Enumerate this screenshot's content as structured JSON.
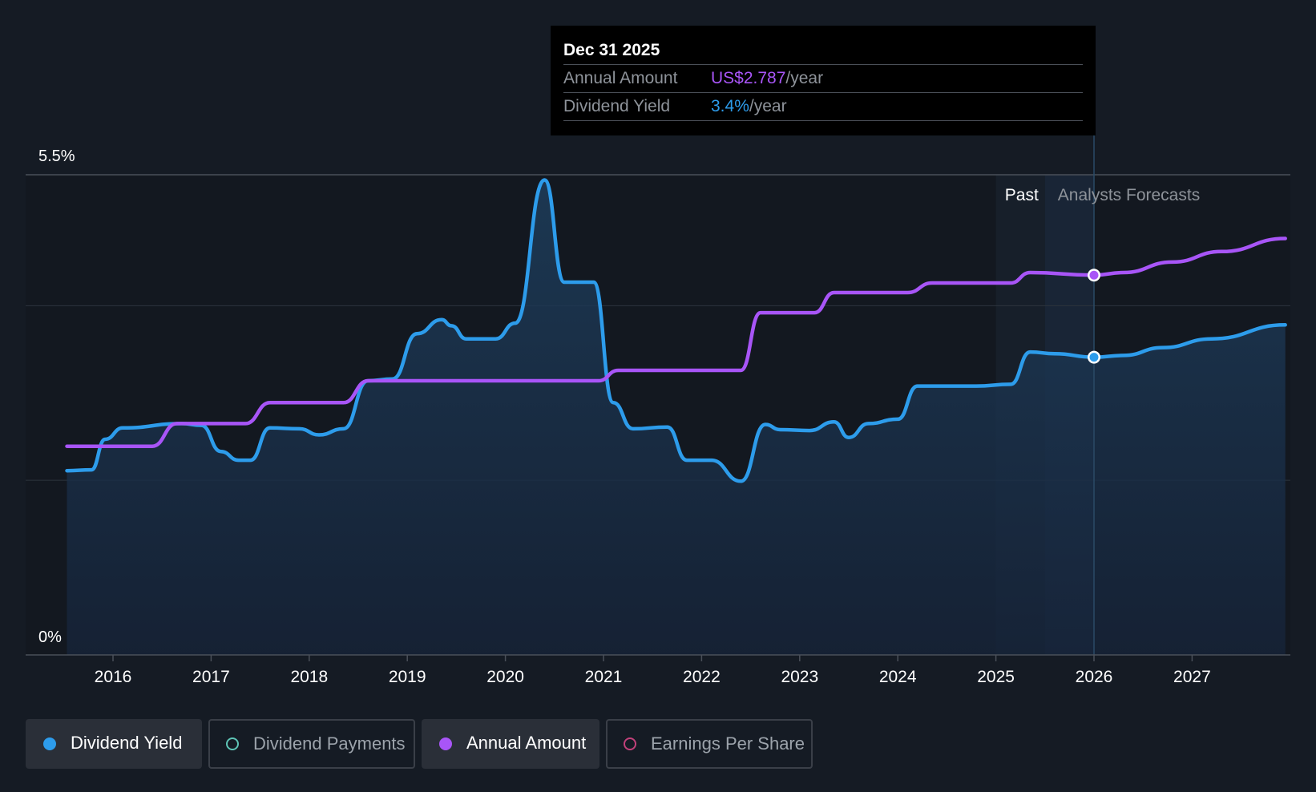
{
  "tooltip": {
    "date": "Dec 31 2025",
    "annual_label": "Annual Amount",
    "annual_value": "US$2.787",
    "annual_unit": "/year",
    "yield_label": "Dividend Yield",
    "yield_value": "3.4%",
    "yield_unit": "/year"
  },
  "legend": [
    {
      "label": "Dividend Yield",
      "color": "#2d9ceb",
      "active": true
    },
    {
      "label": "Dividend Payments",
      "color": "#5ec4b6",
      "active": false
    },
    {
      "label": "Annual Amount",
      "color": "#a855f7",
      "active": true
    },
    {
      "label": "Earnings Per Share",
      "color": "#c2417a",
      "active": false
    }
  ],
  "chart_data": {
    "type": "line",
    "y_top_label": "5.5%",
    "y_bottom_label": "0%",
    "ylim": [
      0,
      5.5
    ],
    "xlim": [
      2015.0,
      2027.95
    ],
    "x_ticks": [
      "2016",
      "2017",
      "2018",
      "2019",
      "2020",
      "2021",
      "2022",
      "2023",
      "2024",
      "2025",
      "2026",
      "2027"
    ],
    "regions": {
      "past_label": "Past",
      "forecast_label": "Analysts Forecasts",
      "past_start": 2025.0,
      "forecast_start": 2025.5,
      "cursor": 2026.0
    },
    "gridlines": [
      5.5,
      4.0,
      2.0
    ],
    "series": [
      {
        "name": "Dividend Yield",
        "color": "#2d9ceb",
        "area": true,
        "points": [
          [
            2015.53,
            2.11
          ],
          [
            2015.78,
            2.12
          ],
          [
            2015.92,
            2.47
          ],
          [
            2016.1,
            2.6
          ],
          [
            2016.7,
            2.65
          ],
          [
            2016.9,
            2.63
          ],
          [
            2017.1,
            2.33
          ],
          [
            2017.28,
            2.23
          ],
          [
            2017.4,
            2.23
          ],
          [
            2017.6,
            2.6
          ],
          [
            2017.9,
            2.59
          ],
          [
            2018.1,
            2.52
          ],
          [
            2018.35,
            2.59
          ],
          [
            2018.6,
            3.14
          ],
          [
            2018.85,
            3.16
          ],
          [
            2019.1,
            3.68
          ],
          [
            2019.35,
            3.84
          ],
          [
            2019.45,
            3.77
          ],
          [
            2019.6,
            3.62
          ],
          [
            2019.9,
            3.62
          ],
          [
            2020.1,
            3.8
          ],
          [
            2020.4,
            5.44
          ],
          [
            2020.6,
            4.27
          ],
          [
            2020.9,
            4.27
          ],
          [
            2021.1,
            2.89
          ],
          [
            2021.3,
            2.59
          ],
          [
            2021.65,
            2.61
          ],
          [
            2021.85,
            2.23
          ],
          [
            2022.1,
            2.23
          ],
          [
            2022.4,
            1.99
          ],
          [
            2022.65,
            2.64
          ],
          [
            2022.8,
            2.58
          ],
          [
            2023.1,
            2.57
          ],
          [
            2023.35,
            2.67
          ],
          [
            2023.5,
            2.49
          ],
          [
            2023.7,
            2.65
          ],
          [
            2024.0,
            2.7
          ],
          [
            2024.2,
            3.08
          ],
          [
            2024.8,
            3.08
          ],
          [
            2025.15,
            3.1
          ],
          [
            2025.35,
            3.47
          ],
          [
            2025.6,
            3.45
          ],
          [
            2026.0,
            3.41
          ],
          [
            2026.3,
            3.43
          ],
          [
            2026.7,
            3.52
          ],
          [
            2027.2,
            3.62
          ],
          [
            2027.95,
            3.78
          ]
        ]
      },
      {
        "name": "Annual Amount",
        "color": "#a855f7",
        "area": false,
        "points": [
          [
            2015.53,
            2.39
          ],
          [
            2015.95,
            2.39
          ],
          [
            2016.4,
            2.39
          ],
          [
            2016.65,
            2.65
          ],
          [
            2017.35,
            2.65
          ],
          [
            2017.6,
            2.89
          ],
          [
            2018.35,
            2.89
          ],
          [
            2018.6,
            3.14
          ],
          [
            2020.95,
            3.14
          ],
          [
            2021.15,
            3.26
          ],
          [
            2022.4,
            3.26
          ],
          [
            2022.6,
            3.92
          ],
          [
            2023.15,
            3.92
          ],
          [
            2023.35,
            4.15
          ],
          [
            2024.1,
            4.15
          ],
          [
            2024.35,
            4.26
          ],
          [
            2025.15,
            4.26
          ],
          [
            2025.35,
            4.38
          ],
          [
            2026.0,
            4.35
          ],
          [
            2026.3,
            4.38
          ],
          [
            2026.8,
            4.5
          ],
          [
            2027.3,
            4.62
          ],
          [
            2027.95,
            4.77
          ]
        ]
      }
    ]
  }
}
